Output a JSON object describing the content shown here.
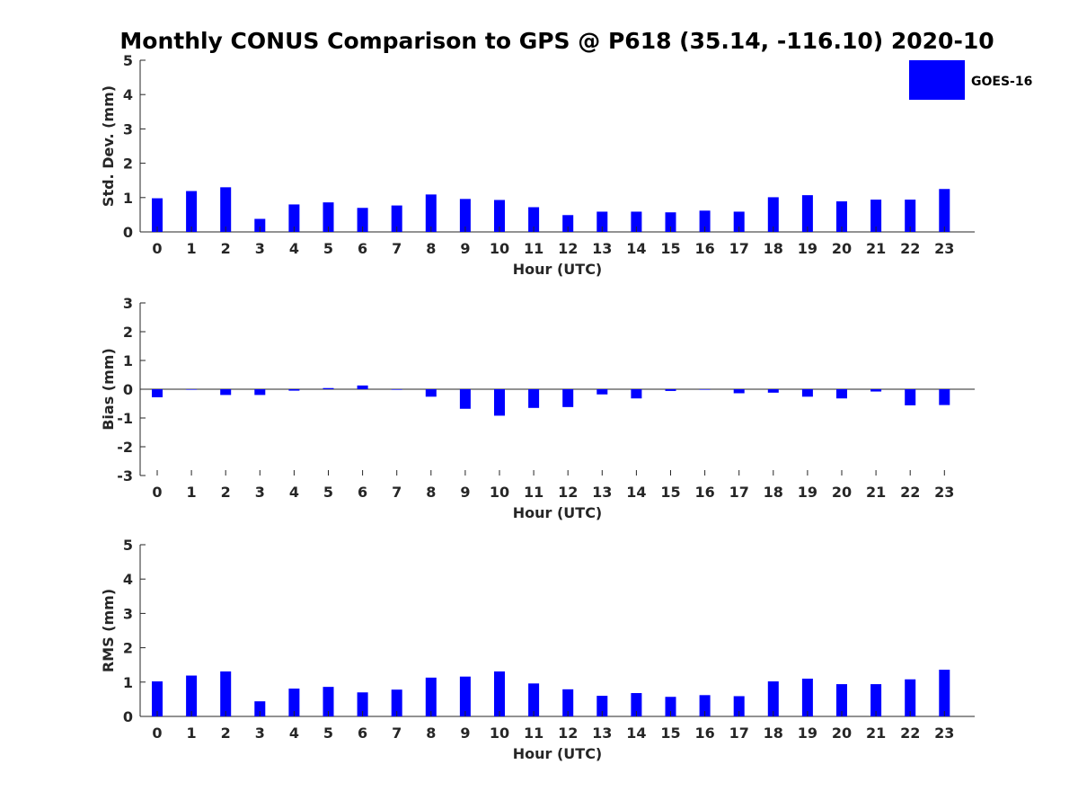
{
  "title": "Monthly CONUS Comparison to GPS @ P618 (35.14, -116.10) 2020-10",
  "legend": {
    "label": "GOES-16",
    "color": "#0000ff"
  },
  "chart_data": [
    {
      "type": "bar",
      "xlabel": "Hour (UTC)",
      "ylabel": "Std. Dev. (mm)",
      "ylim": [
        0,
        5
      ],
      "yticks": [
        "0",
        "1",
        "2",
        "3",
        "4",
        "5"
      ],
      "categories": [
        "0",
        "1",
        "2",
        "3",
        "4",
        "5",
        "6",
        "7",
        "8",
        "9",
        "10",
        "11",
        "12",
        "13",
        "14",
        "15",
        "16",
        "17",
        "18",
        "19",
        "20",
        "21",
        "22",
        "23"
      ],
      "series": [
        {
          "name": "GOES-16",
          "color": "#0000ff",
          "values": [
            0.98,
            1.19,
            1.3,
            0.38,
            0.8,
            0.86,
            0.7,
            0.77,
            1.09,
            0.96,
            0.93,
            0.72,
            0.49,
            0.59,
            0.59,
            0.57,
            0.62,
            0.59,
            1.01,
            1.07,
            0.89,
            0.94,
            0.94,
            1.25
          ]
        }
      ],
      "legend": "top-right",
      "grid": false
    },
    {
      "type": "bar",
      "xlabel": "Hour (UTC)",
      "ylabel": "Bias (mm)",
      "ylim": [
        -3,
        3
      ],
      "yticks": [
        "-3",
        "-2",
        "-1",
        "0",
        "1",
        "2",
        "3"
      ],
      "categories": [
        "0",
        "1",
        "2",
        "3",
        "4",
        "5",
        "6",
        "7",
        "8",
        "9",
        "10",
        "11",
        "12",
        "13",
        "14",
        "15",
        "16",
        "17",
        "18",
        "19",
        "20",
        "21",
        "22",
        "23"
      ],
      "series": [
        {
          "name": "GOES-16",
          "color": "#0000ff",
          "values": [
            -0.28,
            -0.01,
            -0.2,
            -0.2,
            -0.05,
            0.04,
            0.13,
            -0.02,
            -0.26,
            -0.68,
            -0.92,
            -0.65,
            -0.62,
            -0.18,
            -0.32,
            -0.06,
            -0.01,
            -0.14,
            -0.12,
            -0.26,
            -0.32,
            -0.08,
            -0.56,
            -0.55
          ]
        }
      ],
      "grid": false
    },
    {
      "type": "bar",
      "xlabel": "Hour (UTC)",
      "ylabel": "RMS (mm)",
      "ylim": [
        0,
        5
      ],
      "yticks": [
        "0",
        "1",
        "2",
        "3",
        "4",
        "5"
      ],
      "categories": [
        "0",
        "1",
        "2",
        "3",
        "4",
        "5",
        "6",
        "7",
        "8",
        "9",
        "10",
        "11",
        "12",
        "13",
        "14",
        "15",
        "16",
        "17",
        "18",
        "19",
        "20",
        "21",
        "22",
        "23"
      ],
      "series": [
        {
          "name": "GOES-16",
          "color": "#0000ff",
          "values": [
            1.02,
            1.19,
            1.31,
            0.44,
            0.81,
            0.86,
            0.7,
            0.78,
            1.13,
            1.16,
            1.31,
            0.96,
            0.79,
            0.6,
            0.68,
            0.57,
            0.62,
            0.59,
            1.02,
            1.1,
            0.94,
            0.94,
            1.08,
            1.36
          ]
        }
      ],
      "grid": false
    }
  ]
}
